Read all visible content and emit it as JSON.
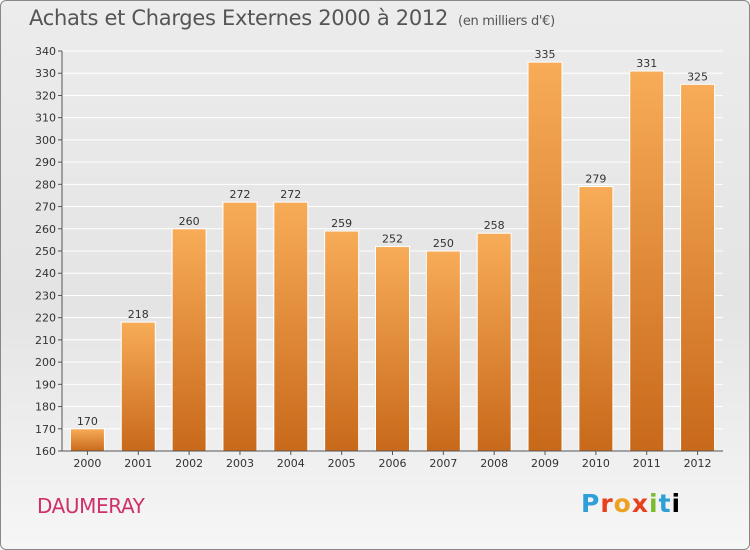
{
  "title": "Achats et Charges Externes 2000 à 2012",
  "subtitle": "(en milliers d'€)",
  "location": "DAUMERAY",
  "brand": [
    "P",
    "r",
    "o",
    "x",
    "i",
    "t",
    "i"
  ],
  "colors": {
    "bar_light": "#f8ac58",
    "bar_dark": "#c8691a",
    "grid": "#ffffff",
    "axis": "#555555"
  },
  "chart_data": {
    "type": "bar",
    "categories": [
      "2000",
      "2001",
      "2002",
      "2003",
      "2004",
      "2005",
      "2006",
      "2007",
      "2008",
      "2009",
      "2010",
      "2011",
      "2012"
    ],
    "values": [
      170,
      218,
      260,
      272,
      272,
      259,
      252,
      250,
      258,
      335,
      279,
      331,
      325
    ],
    "title": "Achats et Charges Externes 2000 à 2012",
    "subtitle": "(en milliers d'€)",
    "xlabel": "",
    "ylabel": "",
    "ylim": [
      160,
      340
    ],
    "yticks": [
      160,
      170,
      180,
      190,
      200,
      210,
      220,
      230,
      240,
      250,
      260,
      270,
      280,
      290,
      300,
      310,
      320,
      330,
      340
    ],
    "grid": true
  }
}
